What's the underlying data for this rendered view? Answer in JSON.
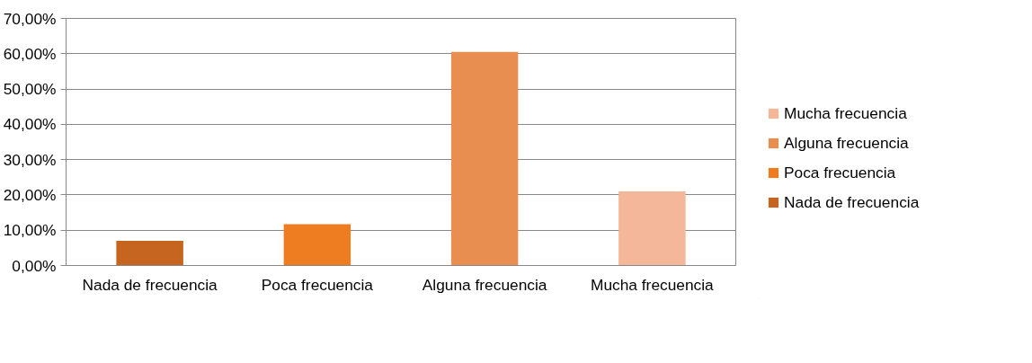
{
  "chart_data": {
    "type": "bar",
    "categories": [
      "Nada de frecuencia",
      "Poca frecuencia",
      "Alguna frecuencia",
      "Mucha frecuencia"
    ],
    "series": [
      {
        "name": "Nada de frecuencia",
        "color": "#c5651f",
        "values": [
          7.0,
          null,
          null,
          null
        ]
      },
      {
        "name": "Poca frecuencia",
        "color": "#ee7d22",
        "values": [
          null,
          11.7,
          null,
          null
        ]
      },
      {
        "name": "Alguna frecuencia",
        "color": "#e88e50",
        "values": [
          null,
          null,
          60.5,
          null
        ]
      },
      {
        "name": "Mucha frecuencia",
        "color": "#f4b79a",
        "values": [
          null,
          null,
          null,
          21.0
        ]
      }
    ],
    "ylim": [
      0,
      70
    ],
    "yticks": [
      {
        "value": 0,
        "label": "0,00%"
      },
      {
        "value": 10,
        "label": "10,00%"
      },
      {
        "value": 20,
        "label": "20,00%"
      },
      {
        "value": 30,
        "label": "30,00%"
      },
      {
        "value": 40,
        "label": "40,00%"
      },
      {
        "value": 50,
        "label": "50,00%"
      },
      {
        "value": 60,
        "label": "60,00%"
      },
      {
        "value": 70,
        "label": "70,00%"
      }
    ],
    "grid": "y",
    "legend": "right"
  }
}
